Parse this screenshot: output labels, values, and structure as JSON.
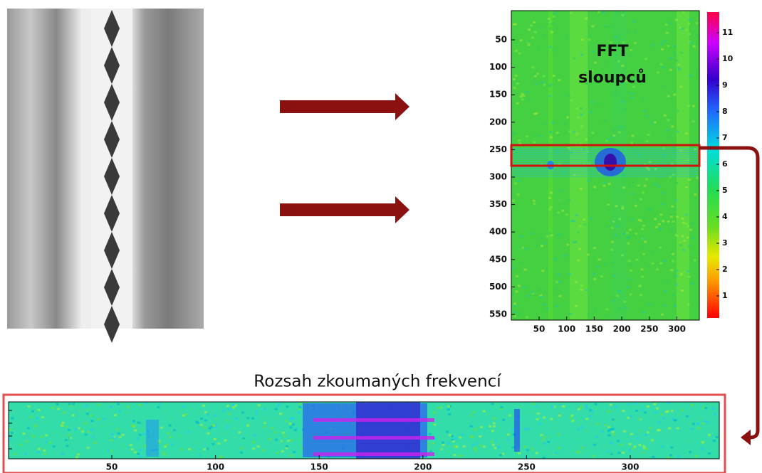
{
  "heatmap": {
    "label": [
      "FFT",
      "sloupců"
    ],
    "yticks": [
      "50",
      "100",
      "150",
      "200",
      "250",
      "300",
      "350",
      "400",
      "450",
      "500",
      "550"
    ],
    "xticks": [
      "50",
      "100",
      "150",
      "200",
      "250",
      "300"
    ],
    "colorbar_ticks": [
      "1",
      "2",
      "3",
      "4",
      "5",
      "6",
      "7",
      "8",
      "9",
      "10",
      "11"
    ]
  },
  "zoom": {
    "title": "Rozsah zkoumaných frekvencí",
    "xticks": [
      "50",
      "100",
      "150",
      "200",
      "250",
      "300"
    ]
  }
}
